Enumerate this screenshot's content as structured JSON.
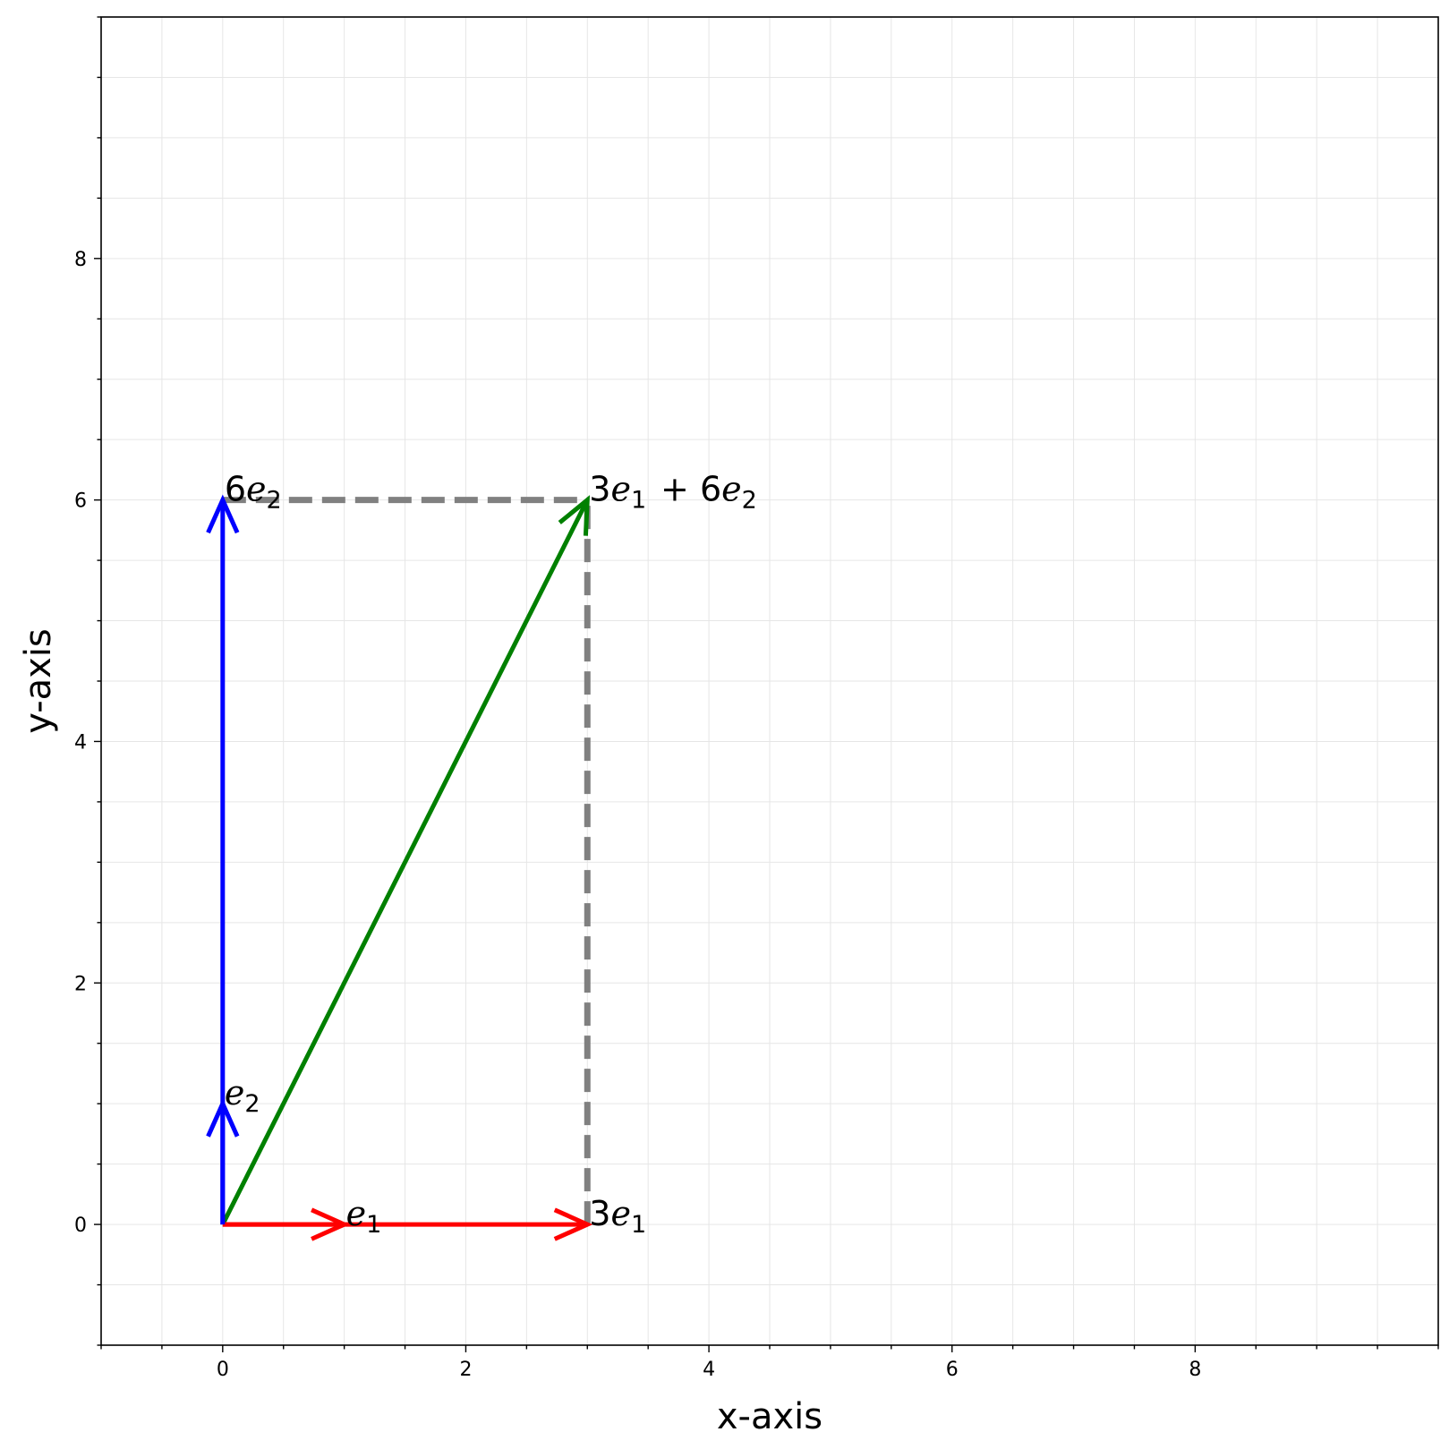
{
  "chart_data": {
    "type": "vector",
    "xlabel": "x-axis",
    "ylabel": "y-axis",
    "xlim": [
      -1,
      10
    ],
    "ylim": [
      -1,
      10
    ],
    "xticks": [
      0,
      2,
      4,
      6,
      8
    ],
    "yticks": [
      0,
      2,
      4,
      6,
      8
    ],
    "minor_step": 0.5,
    "grid": true,
    "vectors": [
      {
        "id": "e1",
        "from": [
          0,
          0
        ],
        "to": [
          1,
          0
        ],
        "color": "#ff0000",
        "label": {
          "coef": "",
          "sub": "1"
        }
      },
      {
        "id": "three-e1",
        "from": [
          0,
          0
        ],
        "to": [
          3,
          0
        ],
        "color": "#ff0000",
        "label": {
          "coef": "3",
          "sub": "1"
        }
      },
      {
        "id": "e2",
        "from": [
          0,
          0
        ],
        "to": [
          0,
          1
        ],
        "color": "#0000ff",
        "label": {
          "coef": "",
          "sub": "2"
        }
      },
      {
        "id": "six-e2",
        "from": [
          0,
          0
        ],
        "to": [
          0,
          6
        ],
        "color": "#0000ff",
        "label": {
          "coef": "6",
          "sub": "2"
        }
      },
      {
        "id": "sum",
        "from": [
          0,
          0
        ],
        "to": [
          3,
          6
        ],
        "color": "#008000",
        "label": {
          "coef": "3",
          "sub": "1",
          "plus_coef": "6",
          "plus_sub": "2"
        }
      }
    ],
    "guides": [
      {
        "from": [
          0,
          6
        ],
        "to": [
          3,
          6
        ],
        "color": "#808080",
        "style": "dashed"
      },
      {
        "from": [
          3,
          0
        ],
        "to": [
          3,
          6
        ],
        "color": "#808080",
        "style": "dashed"
      }
    ]
  }
}
